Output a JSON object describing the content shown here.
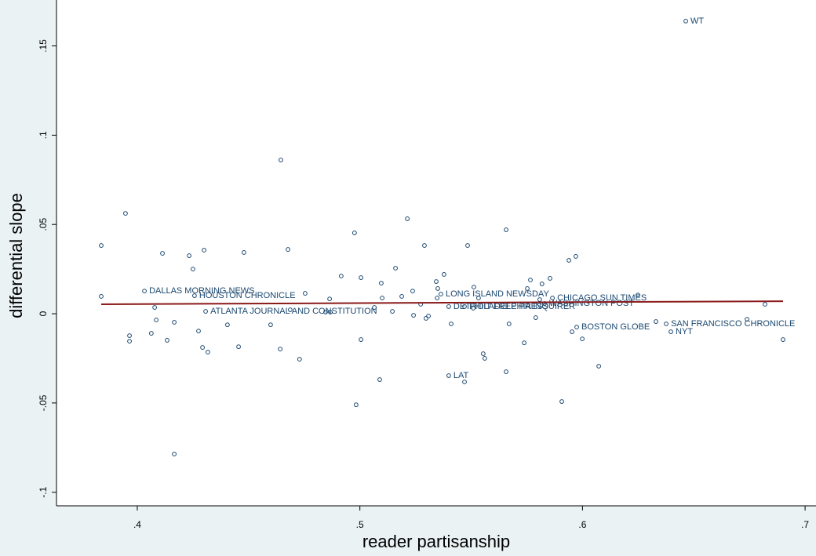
{
  "chart_data": {
    "type": "scatter",
    "xlabel": "reader partisanship",
    "ylabel": "differential slope",
    "color": "#1a476f",
    "xlim": [
      0.3637,
      0.7049
    ],
    "ylim": [
      -0.1076,
      0.1722
    ],
    "xticks": [
      {
        "value": 0.4,
        "label": ".4"
      },
      {
        "value": 0.5,
        "label": ".5"
      },
      {
        "value": 0.6,
        "label": ".6"
      },
      {
        "value": 0.7,
        "label": ".7"
      }
    ],
    "yticks": [
      {
        "value": -0.1,
        "label": "-.1"
      },
      {
        "value": -0.05,
        "label": "-.05"
      },
      0,
      {
        "value": 0.05,
        "label": ".05"
      },
      {
        "value": 0.1,
        "label": ".1"
      },
      {
        "value": 0.15,
        "label": ".15"
      }
    ],
    "x": [
      0.3838,
      0.3838,
      0.3947,
      0.3965,
      0.3965,
      0.4032,
      0.4113,
      0.4078,
      0.4085,
      0.4063,
      0.4134,
      0.4166,
      0.4233,
      0.425,
      0.43,
      0.4275,
      0.4293,
      0.4317,
      0.4257,
      0.4166,
      0.4405,
      0.4479,
      0.4455,
      0.4599,
      0.4642,
      0.4645,
      0.4677,
      0.4307,
      0.4687,
      0.4729,
      0.4754,
      0.4864,
      0.4846,
      0.4867,
      0.4916,
      0.4976,
      0.5005,
      0.5005,
      0.4983,
      0.5065,
      0.5089,
      0.5096,
      0.51,
      0.5146,
      0.516,
      0.5188,
      0.5213,
      0.5237,
      0.5241,
      0.5273,
      0.529,
      0.5297,
      0.5308,
      0.5343,
      0.5347,
      0.535,
      0.5378,
      0.541,
      0.5364,
      0.5399,
      0.547,
      0.5484,
      0.5509,
      0.5512,
      0.5533,
      0.5554,
      0.5561,
      0.5657,
      0.5657,
      0.567,
      0.5738,
      0.5752,
      0.5766,
      0.579,
      0.5808,
      0.5818,
      0.5854,
      0.5399,
      0.547,
      0.5829,
      0.5865,
      0.5907,
      0.5939,
      0.5953,
      0.597,
      0.5999,
      0.5974,
      0.6073,
      0.6249,
      0.633,
      0.6376,
      0.6397,
      0.6464,
      0.6739,
      0.682,
      0.6901
    ],
    "values": [
      0.0382,
      0.0097,
      0.0562,
      -0.0123,
      -0.0154,
      0.0127,
      0.0338,
      0.0035,
      -0.0035,
      -0.011,
      -0.0149,
      -0.0048,
      0.0325,
      0.025,
      0.0356,
      -0.0097,
      -0.0189,
      -0.0215,
      0.0101,
      -0.0786,
      -0.0062,
      0.0343,
      -0.0185,
      -0.0062,
      -0.0198,
      0.0861,
      0.036,
      0.0013,
      0.0022,
      -0.0255,
      0.0114,
      0.0083,
      0.0009,
      0.0009,
      0.0211,
      0.0453,
      0.0202,
      -0.0145,
      -0.051,
      0.0035,
      -0.0369,
      0.0171,
      0.0088,
      0.0013,
      0.0255,
      0.0097,
      0.0532,
      0.0127,
      -0.0009,
      0.0053,
      0.0382,
      -0.0026,
      -0.0013,
      0.018,
      0.0088,
      0.0141,
      0.022,
      -0.0057,
      0.011,
      -0.0347,
      -0.0382,
      0.0382,
      0.0031,
      0.0149,
      0.0088,
      -0.0224,
      -0.025,
      0.047,
      -0.0325,
      -0.0057,
      -0.0163,
      0.0141,
      0.0189,
      -0.0022,
      0.0079,
      0.0167,
      0.0198,
      0.004,
      0.004,
      0.0057,
      0.0088,
      -0.0492,
      0.0299,
      -0.0101,
      0.0321,
      -0.0141,
      -0.0075,
      -0.0294,
      0.0105,
      -0.0044,
      -0.0057,
      -0.0101,
      0.1639,
      -0.0031,
      0.0053,
      -0.0145
    ],
    "labels": [
      null,
      null,
      null,
      null,
      null,
      "DALLAS MORNING NEWS",
      null,
      null,
      null,
      null,
      null,
      null,
      null,
      null,
      null,
      null,
      null,
      null,
      "HOUSTON CHRONICLE",
      null,
      null,
      null,
      null,
      null,
      null,
      null,
      null,
      "ATLANTA JOURNAL AND CONSTITUTION",
      null,
      null,
      null,
      null,
      null,
      null,
      null,
      null,
      null,
      null,
      null,
      null,
      null,
      null,
      null,
      null,
      null,
      null,
      null,
      null,
      null,
      null,
      null,
      null,
      null,
      null,
      null,
      null,
      null,
      null,
      "LONG ISLAND NEWSDAY",
      "LAT",
      null,
      null,
      null,
      null,
      null,
      null,
      null,
      null,
      null,
      null,
      null,
      null,
      null,
      null,
      null,
      null,
      null,
      "DETROIT FREE PRESS",
      "PHILADELPHIA INQUIRER",
      "WASHINGTON POST",
      "CHICAGO SUN TIMES",
      null,
      null,
      null,
      null,
      null,
      "BOSTON GLOBE",
      null,
      null,
      null,
      "SAN FRANCISCO CHRONICLE",
      "NYT",
      "WT",
      null,
      null,
      null
    ],
    "fit": {
      "x": [
        0.3838,
        0.6901
      ],
      "values": [
        0.0053,
        0.007
      ],
      "color": "#8b1a1a"
    }
  }
}
